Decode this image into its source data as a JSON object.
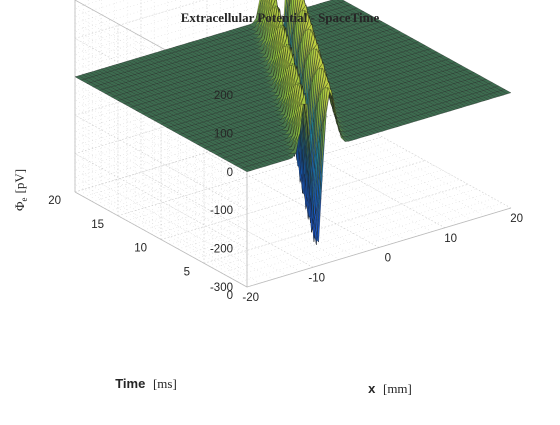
{
  "chart_data": {
    "type": "surface",
    "title": "Extracellular Potential - SpaceTime",
    "xlabel": {
      "symbol": "x",
      "unit": "[mm]"
    },
    "ylabel": {
      "symbol": "Time",
      "unit": "[ms]"
    },
    "zlabel": "Φe [pV]",
    "zlabel_main": "Φ",
    "zlabel_sub": "e",
    "zlabel_unit": "[pV]",
    "xlim": [
      -20,
      20
    ],
    "ylim": [
      0,
      20
    ],
    "zlim": [
      -300,
      200
    ],
    "x_ticks": [
      "-20",
      "-10",
      "0",
      "10",
      "20"
    ],
    "y_ticks": [
      "0",
      "5",
      "10",
      "15",
      "20"
    ],
    "z_ticks": [
      "200",
      "100",
      "0",
      "-100",
      "-200",
      "-300"
    ],
    "grid": "on",
    "colormap": "parula",
    "surface": {
      "baseline": 0,
      "wave_speed_mm_per_ms": 4,
      "wave_front_x_at_t0": 0,
      "positive_peak_pv": 160,
      "negative_peak_pv": -280,
      "extent_x": [
        -20,
        20
      ],
      "extent_t": [
        0,
        20
      ]
    },
    "colors": {
      "flat_surface": "#3d6b4f",
      "positive_peak": "#f4e24a",
      "negative_peak": "#3b2c8e",
      "grid": "#cfcfcf"
    }
  }
}
